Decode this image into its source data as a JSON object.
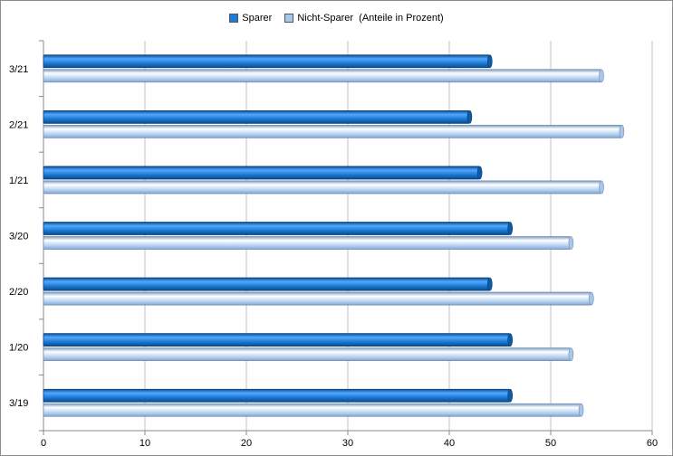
{
  "chart_data": {
    "type": "bar",
    "orientation": "horizontal",
    "title": "",
    "categories": [
      "3/21",
      "2/21",
      "1/21",
      "3/20",
      "2/20",
      "1/20",
      "3/19"
    ],
    "series": [
      {
        "name": "Sparer",
        "values": [
          44,
          42,
          43,
          46,
          44,
          46,
          46
        ],
        "color": "#1c7bd4"
      },
      {
        "name": "Nicht-Sparer  (Anteile in Prozent)",
        "values": [
          55,
          57,
          55,
          52,
          54,
          52,
          53
        ],
        "color": "#a4c8ef"
      }
    ],
    "xlim": [
      0,
      60
    ],
    "x_ticks": [
      0,
      10,
      20,
      30,
      40,
      50,
      60
    ],
    "grid": "vertical",
    "legend_position": "top-center"
  }
}
